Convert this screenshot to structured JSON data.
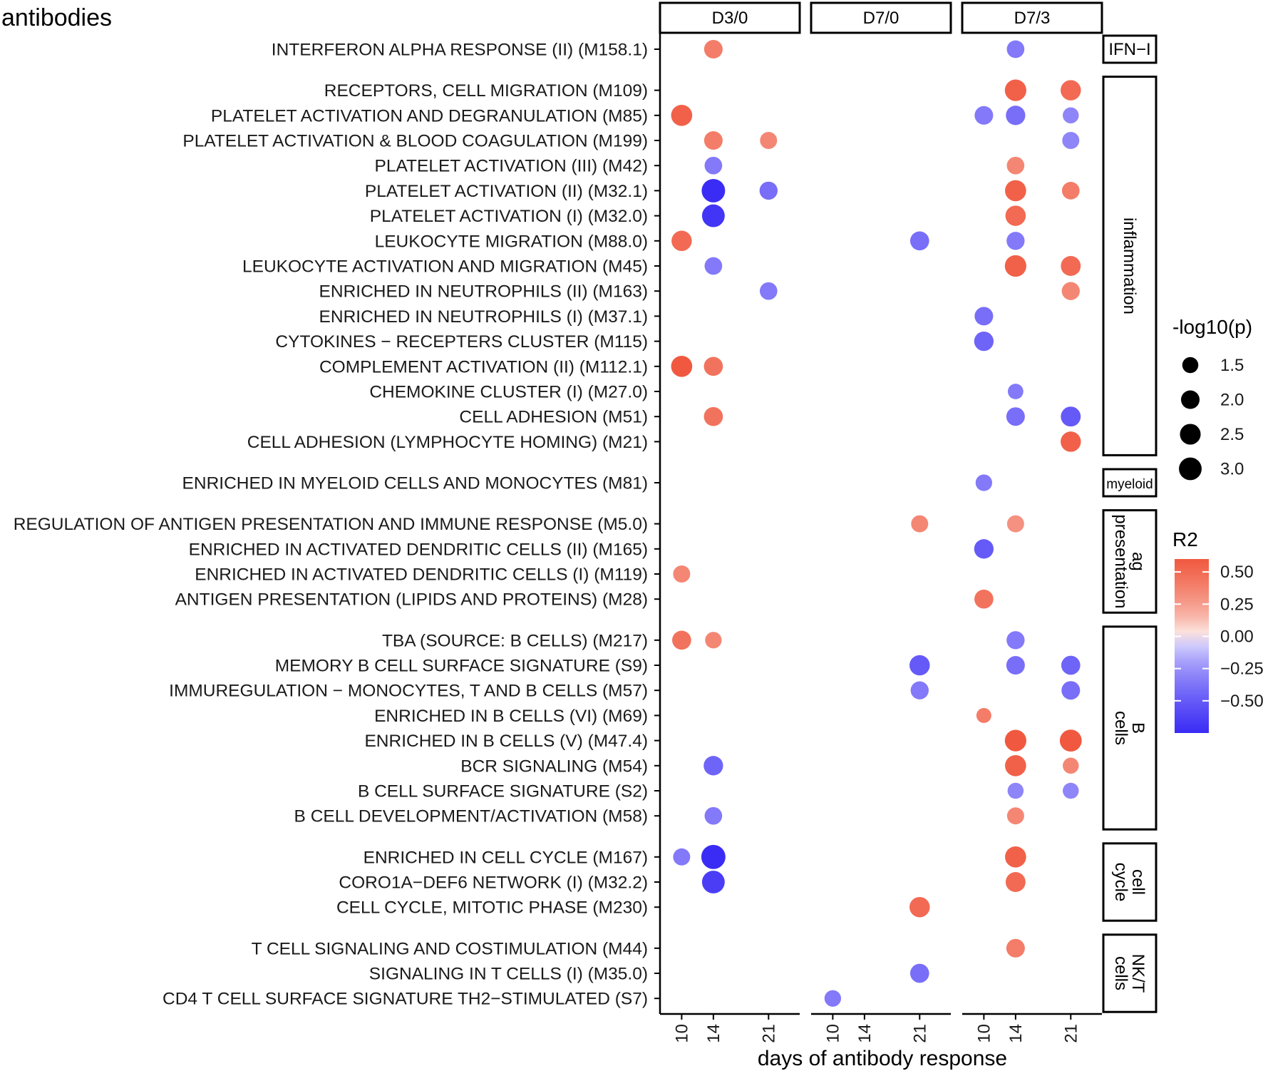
{
  "chart_data": {
    "type": "scatter",
    "title": "antibodies",
    "xlabel": "days of antibody response",
    "panels": [
      "D3/0",
      "D7/0",
      "D7/3"
    ],
    "x_ticks": [
      10,
      14,
      21
    ],
    "groups": [
      {
        "label": "IFN−I",
        "rows": 1
      },
      {
        "label": "inflammation",
        "rows": 15
      },
      {
        "label": "myeloid",
        "rows": 1
      },
      {
        "label": "ag presentation",
        "rows": 4
      },
      {
        "label": "B cells",
        "rows": 8
      },
      {
        "label": "cell cycle",
        "rows": 3
      },
      {
        "label": "NK/T cells",
        "rows": 3
      }
    ],
    "modules": [
      "INTERFERON ALPHA RESPONSE (II) (M158.1)",
      "RECEPTORS, CELL MIGRATION (M109)",
      "PLATELET ACTIVATION AND DEGRANULATION (M85)",
      "PLATELET ACTIVATION & BLOOD COAGULATION (M199)",
      "PLATELET ACTIVATION (III) (M42)",
      "PLATELET ACTIVATION (II) (M32.1)",
      "PLATELET ACTIVATION (I) (M32.0)",
      "LEUKOCYTE MIGRATION (M88.0)",
      "LEUKOCYTE ACTIVATION AND MIGRATION (M45)",
      "ENRICHED IN NEUTROPHILS (II) (M163)",
      "ENRICHED IN NEUTROPHILS (I) (M37.1)",
      "CYTOKINES − RECEPTERS CLUSTER (M115)",
      "COMPLEMENT ACTIVATION (II) (M112.1)",
      "CHEMOKINE CLUSTER (I) (M27.0)",
      "CELL ADHESION (M51)",
      "CELL ADHESION (LYMPHOCYTE HOMING) (M21)",
      "ENRICHED IN MYELOID CELLS AND MONOCYTES (M81)",
      "REGULATION OF ANTIGEN PRESENTATION AND IMMUNE RESPONSE (M5.0)",
      "ENRICHED IN ACTIVATED DENDRITIC CELLS (II) (M165)",
      "ENRICHED IN ACTIVATED DENDRITIC CELLS (I) (M119)",
      "ANTIGEN PRESENTATION (LIPIDS AND PROTEINS) (M28)",
      "TBA (SOURCE: B CELLS) (M217)",
      "MEMORY B CELL SURFACE SIGNATURE (S9)",
      "IMMUREGULATION − MONOCYTES, T AND B CELLS (M57)",
      "ENRICHED IN B CELLS (VI) (M69)",
      "ENRICHED IN B CELLS (V) (M47.4)",
      "BCR SIGNALING (M54)",
      "B CELL SURFACE SIGNATURE (S2)",
      "B CELL DEVELOPMENT/ACTIVATION (M58)",
      "ENRICHED IN CELL CYCLE (M167)",
      "CORO1A−DEF6 NETWORK (I) (M32.2)",
      "CELL CYCLE, MITOTIC PHASE (M230)",
      "T CELL SIGNALING AND COSTIMULATION (M44)",
      "SIGNALING IN T CELLS (I) (M35.0)",
      "CD4 T CELL SURFACE SIGNATURE TH2−STIMULATED (S7)"
    ],
    "points": [
      {
        "m": 0,
        "panel": "D3/0",
        "day": 14,
        "r2": 0.4,
        "logp": 2.0
      },
      {
        "m": 0,
        "panel": "D7/3",
        "day": 14,
        "r2": -0.35,
        "logp": 1.8
      },
      {
        "m": 1,
        "panel": "D7/3",
        "day": 14,
        "r2": 0.55,
        "logp": 2.7
      },
      {
        "m": 1,
        "panel": "D7/3",
        "day": 21,
        "r2": 0.5,
        "logp": 2.4
      },
      {
        "m": 2,
        "panel": "D3/0",
        "day": 10,
        "r2": 0.55,
        "logp": 2.6
      },
      {
        "m": 2,
        "panel": "D7/3",
        "day": 10,
        "r2": -0.35,
        "logp": 2.0
      },
      {
        "m": 2,
        "panel": "D7/3",
        "day": 14,
        "r2": -0.4,
        "logp": 2.2
      },
      {
        "m": 2,
        "panel": "D7/3",
        "day": 21,
        "r2": -0.3,
        "logp": 1.5
      },
      {
        "m": 3,
        "panel": "D3/0",
        "day": 14,
        "r2": 0.4,
        "logp": 2.0
      },
      {
        "m": 3,
        "panel": "D3/0",
        "day": 21,
        "r2": 0.35,
        "logp": 1.7
      },
      {
        "m": 3,
        "panel": "D7/3",
        "day": 21,
        "r2": -0.3,
        "logp": 1.7
      },
      {
        "m": 4,
        "panel": "D3/0",
        "day": 14,
        "r2": -0.35,
        "logp": 1.8
      },
      {
        "m": 4,
        "panel": "D7/3",
        "day": 14,
        "r2": 0.35,
        "logp": 1.8
      },
      {
        "m": 5,
        "panel": "D3/0",
        "day": 14,
        "r2": -0.75,
        "logp": 3.2
      },
      {
        "m": 5,
        "panel": "D3/0",
        "day": 21,
        "r2": -0.4,
        "logp": 1.9
      },
      {
        "m": 5,
        "panel": "D7/3",
        "day": 14,
        "r2": 0.55,
        "logp": 2.6
      },
      {
        "m": 5,
        "panel": "D7/3",
        "day": 21,
        "r2": 0.4,
        "logp": 1.8
      },
      {
        "m": 6,
        "panel": "D3/0",
        "day": 14,
        "r2": -0.7,
        "logp": 3.0
      },
      {
        "m": 6,
        "panel": "D7/3",
        "day": 14,
        "r2": 0.5,
        "logp": 2.4
      },
      {
        "m": 7,
        "panel": "D3/0",
        "day": 10,
        "r2": 0.5,
        "logp": 2.4
      },
      {
        "m": 7,
        "panel": "D7/0",
        "day": 21,
        "r2": -0.4,
        "logp": 2.1
      },
      {
        "m": 7,
        "panel": "D7/3",
        "day": 14,
        "r2": -0.35,
        "logp": 1.9
      },
      {
        "m": 8,
        "panel": "D3/0",
        "day": 14,
        "r2": -0.35,
        "logp": 1.8
      },
      {
        "m": 8,
        "panel": "D7/3",
        "day": 14,
        "r2": 0.55,
        "logp": 2.7
      },
      {
        "m": 8,
        "panel": "D7/3",
        "day": 21,
        "r2": 0.5,
        "logp": 2.3
      },
      {
        "m": 9,
        "panel": "D3/0",
        "day": 21,
        "r2": -0.35,
        "logp": 1.8
      },
      {
        "m": 9,
        "panel": "D7/3",
        "day": 21,
        "r2": 0.35,
        "logp": 1.9
      },
      {
        "m": 10,
        "panel": "D7/3",
        "day": 10,
        "r2": -0.4,
        "logp": 2.0
      },
      {
        "m": 11,
        "panel": "D7/3",
        "day": 10,
        "r2": -0.45,
        "logp": 2.2
      },
      {
        "m": 12,
        "panel": "D3/0",
        "day": 10,
        "r2": 0.6,
        "logp": 2.6
      },
      {
        "m": 12,
        "panel": "D3/0",
        "day": 14,
        "r2": 0.45,
        "logp": 2.1
      },
      {
        "m": 13,
        "panel": "D7/3",
        "day": 14,
        "r2": -0.35,
        "logp": 1.4
      },
      {
        "m": 14,
        "panel": "D3/0",
        "day": 14,
        "r2": 0.45,
        "logp": 2.1
      },
      {
        "m": 14,
        "panel": "D7/3",
        "day": 14,
        "r2": -0.4,
        "logp": 2.0
      },
      {
        "m": 14,
        "panel": "D7/3",
        "day": 21,
        "r2": -0.5,
        "logp": 2.3
      },
      {
        "m": 15,
        "panel": "D7/3",
        "day": 21,
        "r2": 0.55,
        "logp": 2.4
      },
      {
        "m": 16,
        "panel": "D7/3",
        "day": 10,
        "r2": -0.35,
        "logp": 1.6
      },
      {
        "m": 17,
        "panel": "D7/0",
        "day": 21,
        "r2": 0.35,
        "logp": 1.7
      },
      {
        "m": 17,
        "panel": "D7/3",
        "day": 14,
        "r2": 0.3,
        "logp": 1.7
      },
      {
        "m": 18,
        "panel": "D7/3",
        "day": 10,
        "r2": -0.5,
        "logp": 2.2
      },
      {
        "m": 19,
        "panel": "D3/0",
        "day": 10,
        "r2": 0.35,
        "logp": 1.7
      },
      {
        "m": 20,
        "panel": "D7/3",
        "day": 10,
        "r2": 0.45,
        "logp": 2.1
      },
      {
        "m": 21,
        "panel": "D3/0",
        "day": 10,
        "r2": 0.45,
        "logp": 2.1
      },
      {
        "m": 21,
        "panel": "D3/0",
        "day": 14,
        "r2": 0.35,
        "logp": 1.6
      },
      {
        "m": 21,
        "panel": "D7/3",
        "day": 14,
        "r2": -0.35,
        "logp": 1.9
      },
      {
        "m": 22,
        "panel": "D7/0",
        "day": 21,
        "r2": -0.5,
        "logp": 2.4
      },
      {
        "m": 22,
        "panel": "D7/3",
        "day": 14,
        "r2": -0.4,
        "logp": 2.0
      },
      {
        "m": 22,
        "panel": "D7/3",
        "day": 21,
        "r2": -0.45,
        "logp": 2.1
      },
      {
        "m": 23,
        "panel": "D7/0",
        "day": 21,
        "r2": -0.35,
        "logp": 1.9
      },
      {
        "m": 23,
        "panel": "D7/3",
        "day": 21,
        "r2": -0.4,
        "logp": 2.0
      },
      {
        "m": 24,
        "panel": "D7/3",
        "day": 10,
        "r2": 0.4,
        "logp": 1.3
      },
      {
        "m": 25,
        "panel": "D7/3",
        "day": 14,
        "r2": 0.6,
        "logp": 2.7
      },
      {
        "m": 25,
        "panel": "D7/3",
        "day": 21,
        "r2": 0.6,
        "logp": 2.8
      },
      {
        "m": 26,
        "panel": "D3/0",
        "day": 14,
        "r2": -0.45,
        "logp": 2.2
      },
      {
        "m": 26,
        "panel": "D7/3",
        "day": 14,
        "r2": 0.55,
        "logp": 2.6
      },
      {
        "m": 26,
        "panel": "D7/3",
        "day": 21,
        "r2": 0.35,
        "logp": 1.5
      },
      {
        "m": 27,
        "panel": "D7/3",
        "day": 14,
        "r2": -0.3,
        "logp": 1.5
      },
      {
        "m": 27,
        "panel": "D7/3",
        "day": 21,
        "r2": -0.3,
        "logp": 1.5
      },
      {
        "m": 28,
        "panel": "D3/0",
        "day": 14,
        "r2": -0.35,
        "logp": 1.8
      },
      {
        "m": 28,
        "panel": "D7/3",
        "day": 14,
        "r2": 0.35,
        "logp": 1.7
      },
      {
        "m": 29,
        "panel": "D3/0",
        "day": 10,
        "r2": -0.35,
        "logp": 1.7
      },
      {
        "m": 29,
        "panel": "D3/0",
        "day": 14,
        "r2": -0.75,
        "logp": 3.4
      },
      {
        "m": 29,
        "panel": "D7/3",
        "day": 14,
        "r2": 0.55,
        "logp": 2.6
      },
      {
        "m": 30,
        "panel": "D3/0",
        "day": 14,
        "r2": -0.65,
        "logp": 3.0
      },
      {
        "m": 30,
        "panel": "D7/3",
        "day": 14,
        "r2": 0.5,
        "logp": 2.3
      },
      {
        "m": 31,
        "panel": "D7/0",
        "day": 21,
        "r2": 0.5,
        "logp": 2.4
      },
      {
        "m": 32,
        "panel": "D7/3",
        "day": 14,
        "r2": 0.4,
        "logp": 2.0
      },
      {
        "m": 33,
        "panel": "D7/0",
        "day": 21,
        "r2": -0.4,
        "logp": 2.1
      },
      {
        "m": 34,
        "panel": "D7/0",
        "day": 10,
        "r2": -0.35,
        "logp": 1.6
      }
    ],
    "size_legend": {
      "title": "-log10(p)",
      "values": [
        1.5,
        2.0,
        2.5,
        3.0
      ],
      "labels": [
        "1.5",
        "2.0",
        "2.5",
        "3.0"
      ]
    },
    "color_legend": {
      "title": "R2",
      "ticks": [
        0.5,
        0.25,
        0.0,
        -0.25,
        -0.5
      ],
      "labels": [
        "0.50",
        "0.25",
        "0.00",
        "−0.25",
        "−0.50"
      ],
      "range": [
        -0.75,
        0.6
      ]
    },
    "colors": {
      "high": "#f0593f",
      "mid": "#ffffff",
      "low": "#3b2cf5"
    }
  }
}
